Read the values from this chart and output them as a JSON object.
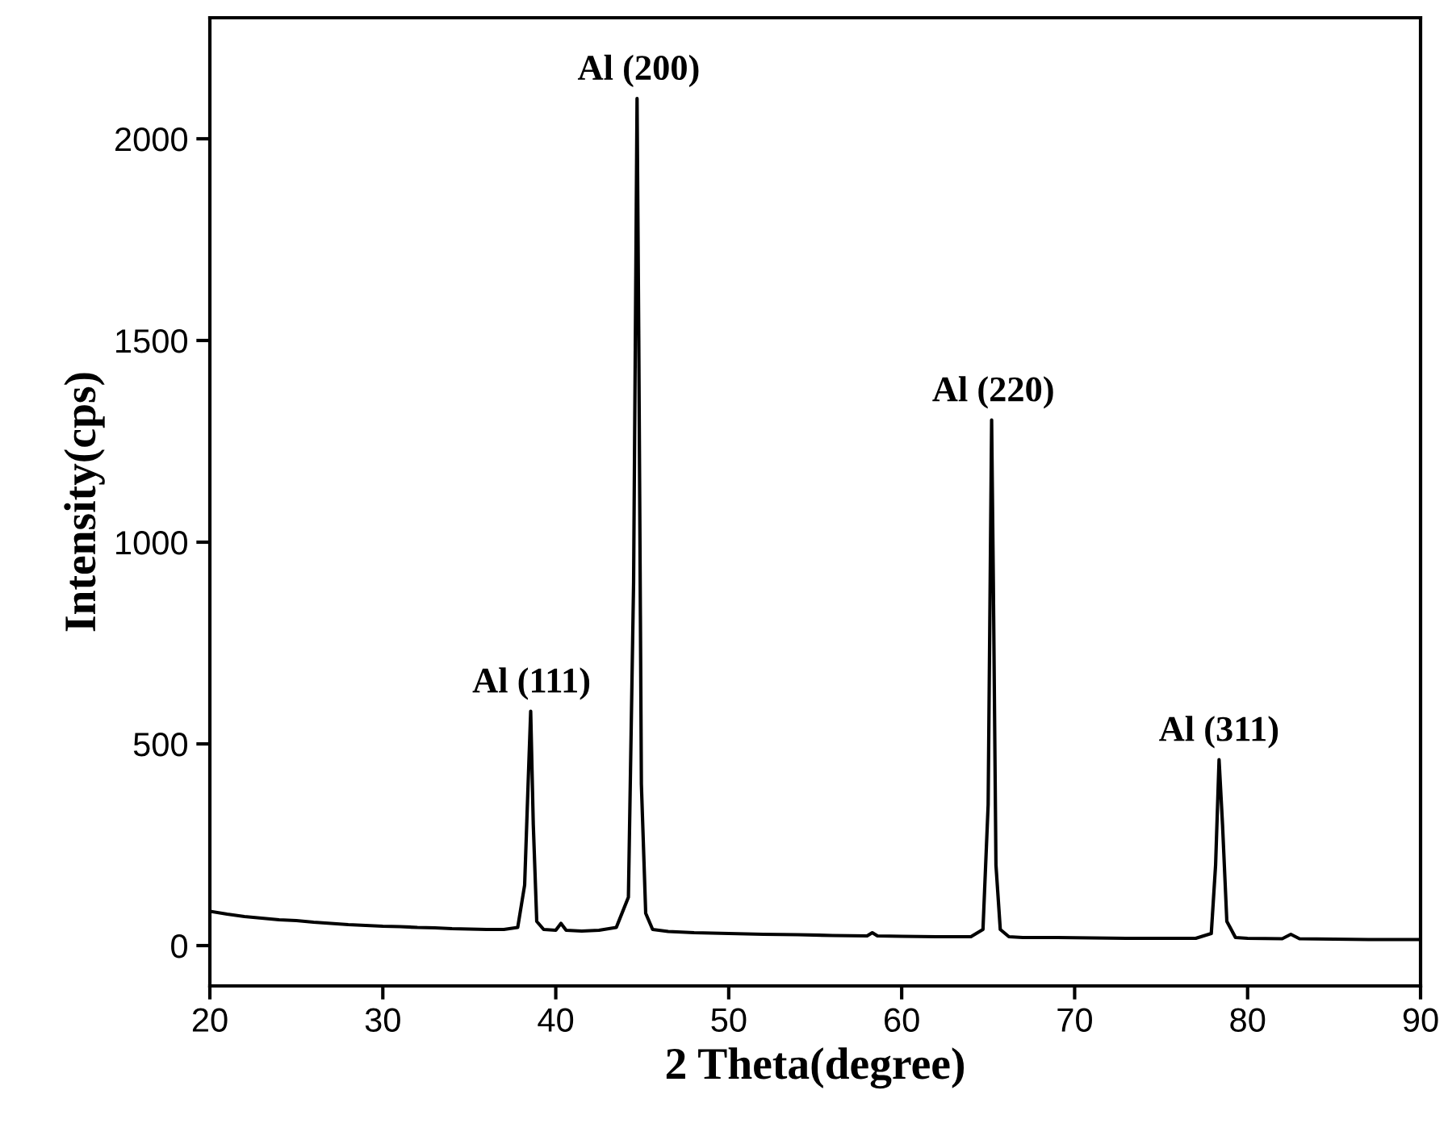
{
  "chart_data": {
    "type": "line",
    "xlabel": "2 Theta(degree)",
    "ylabel": "Intensity(cps)",
    "xlim": [
      20,
      90
    ],
    "ylim": [
      -100,
      2300
    ],
    "xticks": [
      20,
      30,
      40,
      50,
      60,
      70,
      80,
      90
    ],
    "yticks": [
      0,
      500,
      1000,
      1500,
      2000
    ],
    "grid": false,
    "legend": false,
    "marker": "none",
    "line_style": "solid",
    "series": [
      {
        "color": "#000000",
        "x": [
          20,
          21,
          22,
          23,
          24,
          25,
          26,
          27,
          28,
          29,
          30,
          31,
          32,
          33,
          34,
          35,
          36,
          37,
          37.8,
          38.2,
          38.4,
          38.55,
          38.7,
          38.9,
          39.3,
          40,
          40.3,
          40.6,
          41.5,
          42.5,
          43.5,
          44.2,
          44.5,
          44.7,
          44.8,
          44.95,
          45.2,
          45.6,
          46.5,
          48,
          50,
          52,
          54,
          56,
          58,
          58.3,
          58.6,
          60,
          62,
          64,
          64.7,
          65.0,
          65.2,
          65.3,
          65.45,
          65.7,
          66.2,
          67,
          69,
          71,
          73,
          75,
          77,
          77.9,
          78.15,
          78.35,
          78.55,
          78.8,
          79.3,
          80,
          82,
          82.5,
          83,
          85,
          87,
          90
        ],
        "values": [
          85,
          78,
          72,
          68,
          64,
          62,
          58,
          55,
          52,
          50,
          48,
          47,
          45,
          44,
          42,
          41,
          40,
          40,
          45,
          150,
          400,
          581,
          300,
          60,
          40,
          38,
          55,
          38,
          36,
          38,
          45,
          120,
          900,
          2100,
          1500,
          400,
          80,
          40,
          35,
          32,
          30,
          28,
          27,
          25,
          24,
          32,
          24,
          23,
          22,
          22,
          40,
          350,
          1303,
          900,
          200,
          40,
          22,
          20,
          20,
          19,
          18,
          18,
          18,
          30,
          200,
          461,
          300,
          60,
          20,
          18,
          17,
          28,
          17,
          16,
          15,
          15
        ]
      }
    ],
    "annotations": [
      {
        "text": "Al (111)",
        "x": 38.6,
        "y": 581
      },
      {
        "text": "Al (200)",
        "x": 44.8,
        "y": 2100
      },
      {
        "text": "Al (220)",
        "x": 65.3,
        "y": 1303
      },
      {
        "text": "Al (311)",
        "x": 78.35,
        "y": 461
      }
    ]
  }
}
